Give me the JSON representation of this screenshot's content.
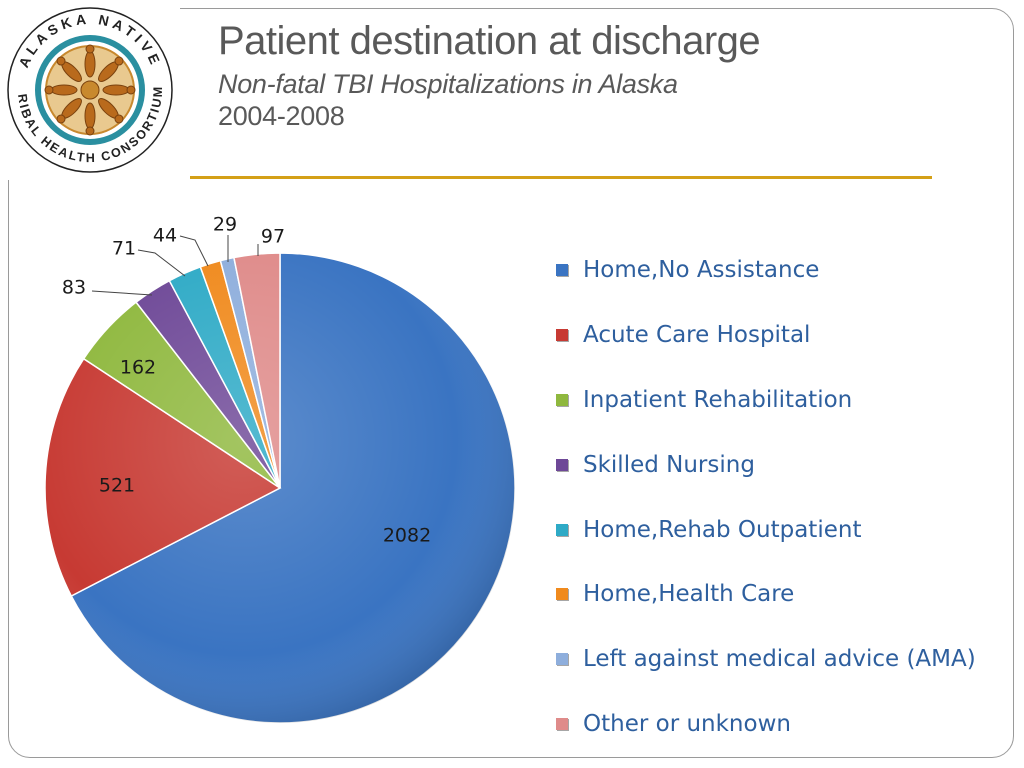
{
  "logo": {
    "text_top": "ALASKA NATIVE",
    "text_bottom": "TRIBAL HEALTH CONSORTIUM"
  },
  "slide": {
    "title": "Patient destination at discharge",
    "subtitle": "Non-fatal TBI Hospitalizations in Alaska",
    "years": "2004-2008",
    "rule_color": "#d4a017"
  },
  "chart_data": {
    "type": "pie",
    "categories": [
      "Home,No Assistance",
      "Acute Care Hospital",
      "Inpatient Rehabilitation",
      "Skilled Nursing",
      "Home,Rehab Outpatient",
      "Home,Health Care",
      "Left against medical advice (AMA)",
      "Other or unknown"
    ],
    "values": [
      2082,
      521,
      162,
      83,
      71,
      44,
      29,
      97
    ],
    "data_labels": [
      "2082",
      "521",
      "162",
      "83",
      "71",
      "44",
      "29",
      "97"
    ],
    "colors": [
      "#3a74c2",
      "#c73a33",
      "#8fb83e",
      "#6e4897",
      "#2eaac6",
      "#f08a1d",
      "#8eaedc",
      "#df8b8a"
    ],
    "start": "12 o'clock",
    "direction": "clockwise",
    "legend_position": "right"
  }
}
